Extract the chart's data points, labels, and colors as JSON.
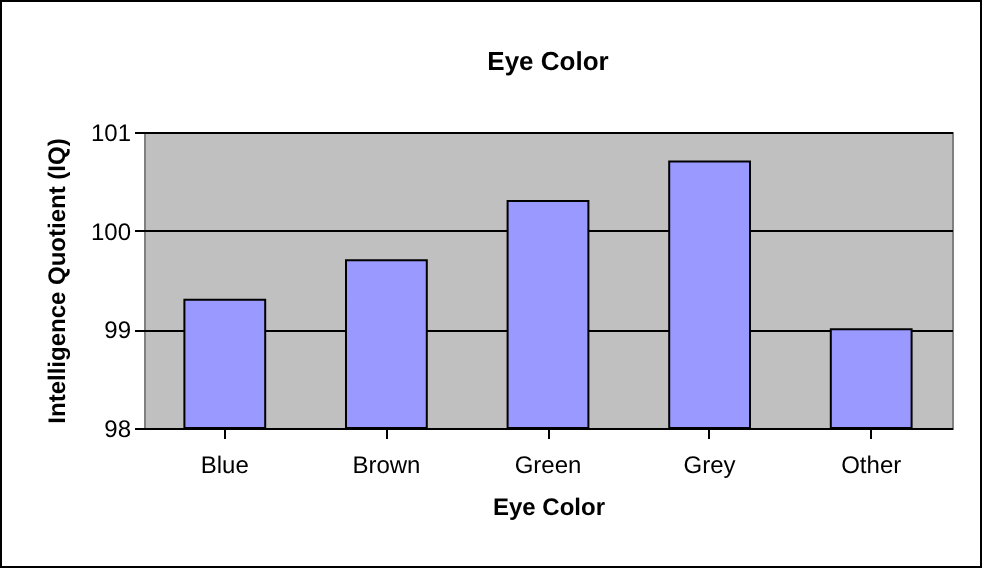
{
  "chart_data": {
    "type": "bar",
    "title": "Eye Color",
    "xlabel": "Eye Color",
    "ylabel": "Intelligence Quotient (IQ)",
    "categories": [
      "Blue",
      "Brown",
      "Green",
      "Grey",
      "Other"
    ],
    "values": [
      99.3,
      99.7,
      100.3,
      100.7,
      99.0
    ],
    "color": "#9999ff",
    "ylim": [
      98,
      101
    ],
    "yticks": [
      98,
      99,
      100,
      101
    ],
    "grid": "y"
  }
}
